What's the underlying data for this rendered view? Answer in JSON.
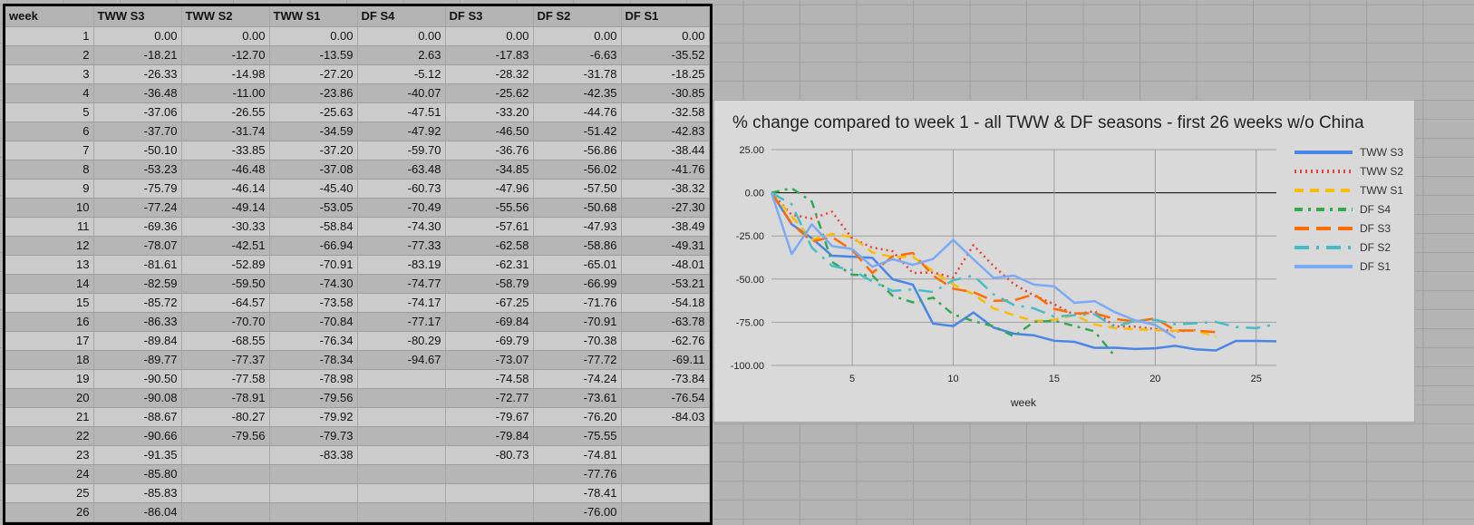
{
  "table": {
    "headers": [
      "week",
      "TWW S3",
      "TWW S2",
      "TWW S1",
      "DF S4",
      "DF S3",
      "DF S2",
      "DF S1"
    ],
    "rows": [
      [
        "1",
        "0.00",
        "0.00",
        "0.00",
        "0.00",
        "0.00",
        "0.00",
        "0.00"
      ],
      [
        "2",
        "-18.21",
        "-12.70",
        "-13.59",
        "2.63",
        "-17.83",
        "-6.63",
        "-35.52"
      ],
      [
        "3",
        "-26.33",
        "-14.98",
        "-27.20",
        "-5.12",
        "-28.32",
        "-31.78",
        "-18.25"
      ],
      [
        "4",
        "-36.48",
        "-11.00",
        "-23.86",
        "-40.07",
        "-25.62",
        "-42.35",
        "-30.85"
      ],
      [
        "5",
        "-37.06",
        "-26.55",
        "-25.63",
        "-47.51",
        "-33.20",
        "-44.76",
        "-32.58"
      ],
      [
        "6",
        "-37.70",
        "-31.74",
        "-34.59",
        "-47.92",
        "-46.50",
        "-51.42",
        "-42.83"
      ],
      [
        "7",
        "-50.10",
        "-33.85",
        "-37.20",
        "-59.70",
        "-36.76",
        "-56.86",
        "-38.44"
      ],
      [
        "8",
        "-53.23",
        "-46.48",
        "-37.08",
        "-63.48",
        "-34.85",
        "-56.02",
        "-41.76"
      ],
      [
        "9",
        "-75.79",
        "-46.14",
        "-45.40",
        "-60.73",
        "-47.96",
        "-57.50",
        "-38.32"
      ],
      [
        "10",
        "-77.24",
        "-49.14",
        "-53.05",
        "-70.49",
        "-55.56",
        "-50.68",
        "-27.30"
      ],
      [
        "11",
        "-69.36",
        "-30.33",
        "-58.84",
        "-74.30",
        "-57.61",
        "-47.93",
        "-38.49"
      ],
      [
        "12",
        "-78.07",
        "-42.51",
        "-66.94",
        "-77.33",
        "-62.58",
        "-58.86",
        "-49.31"
      ],
      [
        "13",
        "-81.61",
        "-52.89",
        "-70.91",
        "-83.19",
        "-62.31",
        "-65.01",
        "-48.01"
      ],
      [
        "14",
        "-82.59",
        "-59.50",
        "-74.30",
        "-74.77",
        "-58.79",
        "-66.99",
        "-53.21"
      ],
      [
        "15",
        "-85.72",
        "-64.57",
        "-73.58",
        "-74.17",
        "-67.25",
        "-71.76",
        "-54.18"
      ],
      [
        "16",
        "-86.33",
        "-70.70",
        "-70.84",
        "-77.17",
        "-69.84",
        "-70.91",
        "-63.78"
      ],
      [
        "17",
        "-89.84",
        "-68.55",
        "-76.34",
        "-80.29",
        "-69.79",
        "-70.38",
        "-62.76"
      ],
      [
        "18",
        "-89.77",
        "-77.37",
        "-78.34",
        "-94.67",
        "-73.07",
        "-77.72",
        "-69.11"
      ],
      [
        "19",
        "-90.50",
        "-77.58",
        "-78.98",
        "",
        "-74.58",
        "-74.24",
        "-73.84"
      ],
      [
        "20",
        "-90.08",
        "-78.91",
        "-79.56",
        "",
        "-72.77",
        "-73.61",
        "-76.54"
      ],
      [
        "21",
        "-88.67",
        "-80.27",
        "-79.92",
        "",
        "-79.67",
        "-76.20",
        "-84.03"
      ],
      [
        "22",
        "-90.66",
        "-79.56",
        "-79.73",
        "",
        "-79.84",
        "-75.55",
        ""
      ],
      [
        "23",
        "-91.35",
        "",
        "-83.38",
        "",
        "-80.73",
        "-74.81",
        ""
      ],
      [
        "24",
        "-85.80",
        "",
        "",
        "",
        "",
        "-77.76",
        ""
      ],
      [
        "25",
        "-85.83",
        "",
        "",
        "",
        "",
        "-78.41",
        ""
      ],
      [
        "26",
        "-86.04",
        "",
        "",
        "",
        "",
        "-76.00",
        ""
      ]
    ]
  },
  "chart_data": {
    "type": "line",
    "title": "% change compared to week 1 - all TWW & DF seasons - first 26 weeks w/o China",
    "xlabel": "week",
    "ylabel": "",
    "xlim": [
      1,
      26
    ],
    "ylim": [
      -100,
      25
    ],
    "x_ticks": [
      "5",
      "10",
      "15",
      "20",
      "25"
    ],
    "y_ticks": [
      "25.00",
      "0.00",
      "-25.00",
      "-50.00",
      "-75.00",
      "-100.00"
    ],
    "grid": true,
    "legend_position": "right",
    "x": [
      1,
      2,
      3,
      4,
      5,
      6,
      7,
      8,
      9,
      10,
      11,
      12,
      13,
      14,
      15,
      16,
      17,
      18,
      19,
      20,
      21,
      22,
      23,
      24,
      25,
      26
    ],
    "series": [
      {
        "name": "TWW S3",
        "color": "#4a86e8",
        "dash": "solid",
        "width": 2.5,
        "values": [
          0,
          -18.21,
          -26.33,
          -36.48,
          -37.06,
          -37.7,
          -50.1,
          -53.23,
          -75.79,
          -77.24,
          -69.36,
          -78.07,
          -81.61,
          -82.59,
          -85.72,
          -86.33,
          -89.84,
          -89.77,
          -90.5,
          -90.08,
          -88.67,
          -90.66,
          -91.35,
          -85.8,
          -85.83,
          -86.04
        ]
      },
      {
        "name": "TWW S2",
        "color": "#ea4335",
        "dash": "dot",
        "width": 2.5,
        "values": [
          0,
          -12.7,
          -14.98,
          -11.0,
          -26.55,
          -31.74,
          -33.85,
          -46.48,
          -46.14,
          -49.14,
          -30.33,
          -42.51,
          -52.89,
          -59.5,
          -64.57,
          -70.7,
          -68.55,
          -77.37,
          -77.58,
          -78.91,
          -80.27,
          -79.56
        ]
      },
      {
        "name": "TWW S1",
        "color": "#fbbc04",
        "dash": "dash",
        "width": 2.5,
        "values": [
          0,
          -13.59,
          -27.2,
          -23.86,
          -25.63,
          -34.59,
          -37.2,
          -37.08,
          -45.4,
          -53.05,
          -58.84,
          -66.94,
          -70.91,
          -74.3,
          -73.58,
          -70.84,
          -76.34,
          -78.34,
          -78.98,
          -79.56,
          -79.92,
          -79.73,
          -83.38
        ]
      },
      {
        "name": "DF S4",
        "color": "#34a853",
        "dash": "dashdot",
        "width": 2.5,
        "values": [
          0,
          2.63,
          -5.12,
          -40.07,
          -47.51,
          -47.92,
          -59.7,
          -63.48,
          -60.73,
          -70.49,
          -74.3,
          -77.33,
          -83.19,
          -74.77,
          -74.17,
          -77.17,
          -80.29,
          -94.67
        ]
      },
      {
        "name": "DF S3",
        "color": "#ff6d01",
        "dash": "longdash",
        "width": 2.5,
        "values": [
          0,
          -17.83,
          -28.32,
          -25.62,
          -33.2,
          -46.5,
          -36.76,
          -34.85,
          -47.96,
          -55.56,
          -57.61,
          -62.58,
          -62.31,
          -58.79,
          -67.25,
          -69.84,
          -69.79,
          -73.07,
          -74.58,
          -72.77,
          -79.67,
          -79.84,
          -80.73
        ]
      },
      {
        "name": "DF S2",
        "color": "#46bdc6",
        "dash": "longdashdot",
        "width": 2.5,
        "values": [
          0,
          -6.63,
          -31.78,
          -42.35,
          -44.76,
          -51.42,
          -56.86,
          -56.02,
          -57.5,
          -50.68,
          -47.93,
          -58.86,
          -65.01,
          -66.99,
          -71.76,
          -70.91,
          -70.38,
          -77.72,
          -74.24,
          -73.61,
          -76.2,
          -75.55,
          -74.81,
          -77.76,
          -78.41,
          -76.0
        ]
      },
      {
        "name": "DF S1",
        "color": "#7baaf7",
        "dash": "solid",
        "width": 2.5,
        "values": [
          0,
          -35.52,
          -18.25,
          -30.85,
          -32.58,
          -42.83,
          -38.44,
          -41.76,
          -38.32,
          -27.3,
          -38.49,
          -49.31,
          -48.01,
          -53.21,
          -54.18,
          -63.78,
          -62.76,
          -69.11,
          -73.84,
          -76.54,
          -84.03
        ]
      }
    ]
  }
}
